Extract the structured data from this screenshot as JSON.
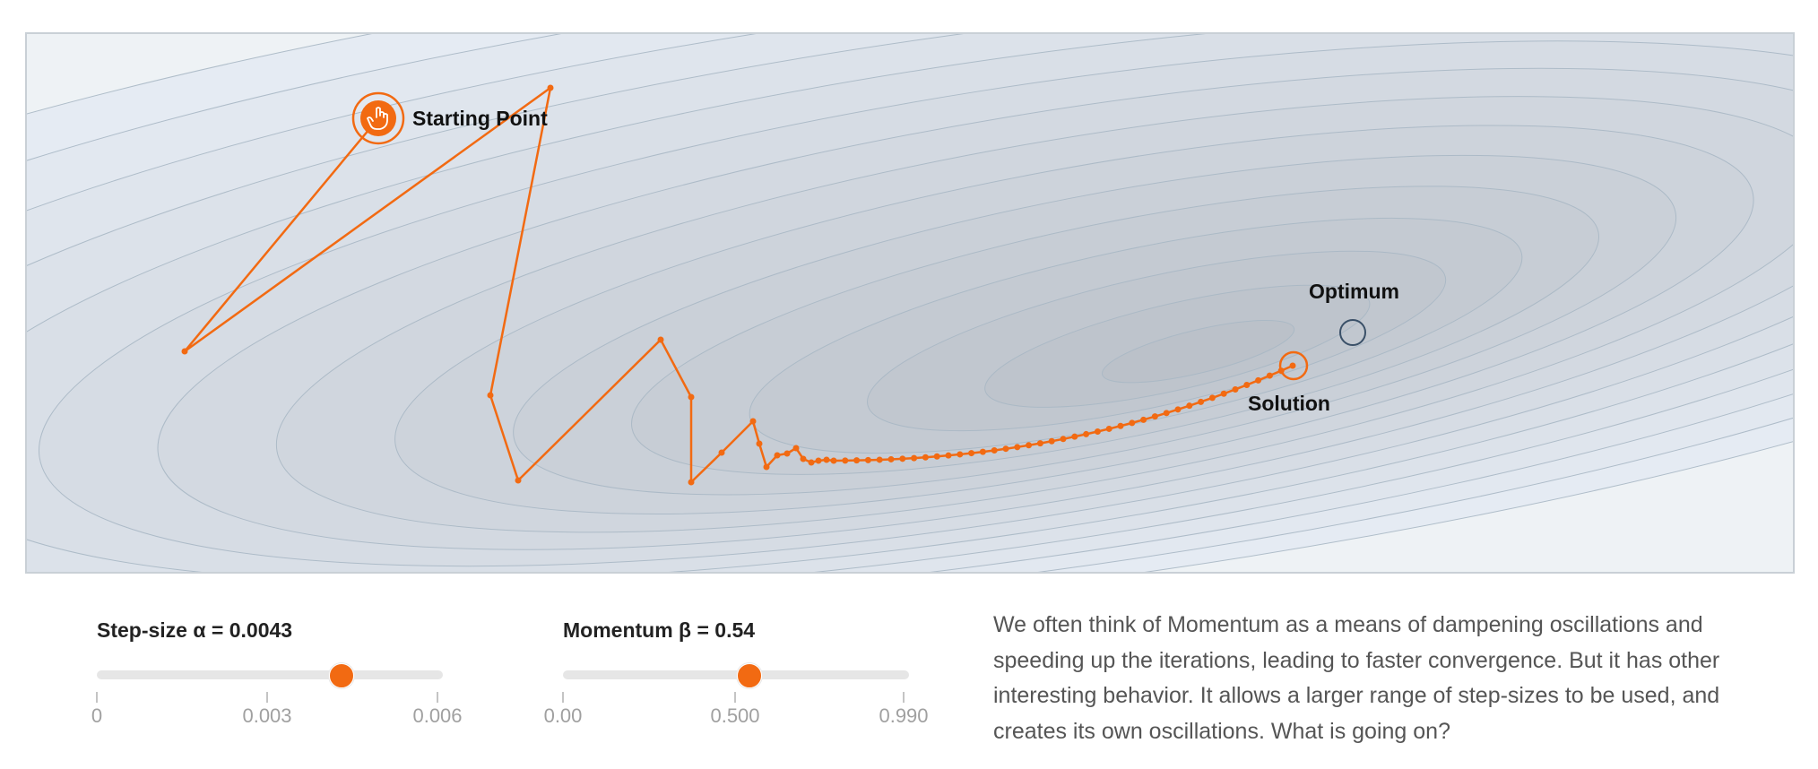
{
  "visualization": {
    "labels": {
      "start": "Starting Point",
      "optimum": "Optimum",
      "solution": "Solution"
    },
    "colors": {
      "path": "#f26a12",
      "contour_stroke": "#a9b8c5",
      "optimum_marker": "#3a5068"
    },
    "start_icon": "hand-pointer-icon"
  },
  "controls": {
    "step_size": {
      "label": "Step-size α = 0.0043",
      "value": 0.0043,
      "min": 0,
      "max": 0.006,
      "ticks": [
        "0",
        "0.003",
        "0.006"
      ]
    },
    "momentum": {
      "label": "Momentum β = 0.54",
      "value": 0.54,
      "min": 0,
      "max": 0.99,
      "ticks": [
        "0.00",
        "0.500",
        "0.990"
      ]
    }
  },
  "description": "We often think of Momentum as a means of dampening oscillations and speeding up the iterations, leading to faster convergence. But it has other interesting behavior. It allows a larger range of step-sizes to be used, and creates its own oscillations. What is going on?"
}
